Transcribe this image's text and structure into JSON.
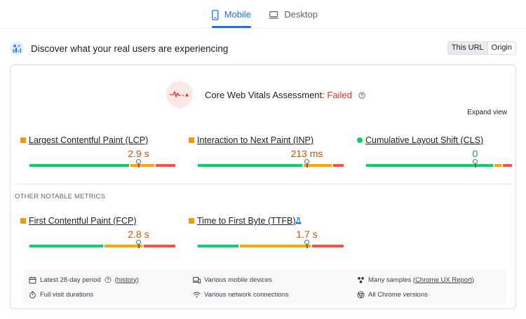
{
  "tabs": [
    {
      "label": "Mobile",
      "icon": "phone-icon",
      "active": true
    },
    {
      "label": "Desktop",
      "icon": "laptop-icon",
      "active": false
    }
  ],
  "header": {
    "title": "Discover what your real users are experiencing",
    "icon": "people-chart-icon",
    "toggle": {
      "this_url": "This URL",
      "origin": "Origin",
      "selected": "This URL"
    }
  },
  "assessment": {
    "label": "Core Web Vitals Assessment:",
    "status": "Failed",
    "status_color": "#d93025",
    "expand": "Expand view"
  },
  "core_metrics": [
    {
      "name": "Largest Contentful Paint (LCP)",
      "value": "2.9 s",
      "marker": "square",
      "marker_color": "#f29900",
      "value_color": "#c05600",
      "good": 0.685,
      "ni": 0.17,
      "poor": 0.145,
      "pin": 0.745
    },
    {
      "name": "Interaction to Next Paint (INP)",
      "value": "213 ms",
      "marker": "square",
      "marker_color": "#f29900",
      "value_color": "#c05600",
      "good": 0.72,
      "ni": 0.2,
      "poor": 0.08,
      "pin": 0.745
    },
    {
      "name": "Cumulative Layout Shift (CLS)",
      "value": "0",
      "marker": "circle",
      "marker_color": "#0cce6b",
      "value_color": "#0d9d58",
      "good": 0.87,
      "ni": 0.06,
      "poor": 0.07,
      "pin": 0.745
    }
  ],
  "other_section_label": "OTHER NOTABLE METRICS",
  "other_metrics": [
    {
      "name": "First Contentful Paint (FCP)",
      "value": "2.8 s",
      "marker": "square",
      "marker_color": "#f29900",
      "value_color": "#c05600",
      "good": 0.51,
      "ni": 0.265,
      "poor": 0.225,
      "pin": 0.745,
      "flask": false
    },
    {
      "name": "Time to First Byte (TTFB)",
      "value": "1.7 s",
      "marker": "square",
      "marker_color": "#f29900",
      "value_color": "#c05600",
      "good": 0.285,
      "ni": 0.49,
      "poor": 0.225,
      "pin": 0.745,
      "flask": true
    }
  ],
  "footer": {
    "period": "Latest 28-day period",
    "history": "history",
    "durations": "Full visit durations",
    "devices": "Various mobile devices",
    "connections": "Various network connections",
    "samples_prefix": "Many samples (",
    "samples_link": "Chrome UX Report",
    "samples_suffix": ")",
    "chrome": "All Chrome versions"
  }
}
